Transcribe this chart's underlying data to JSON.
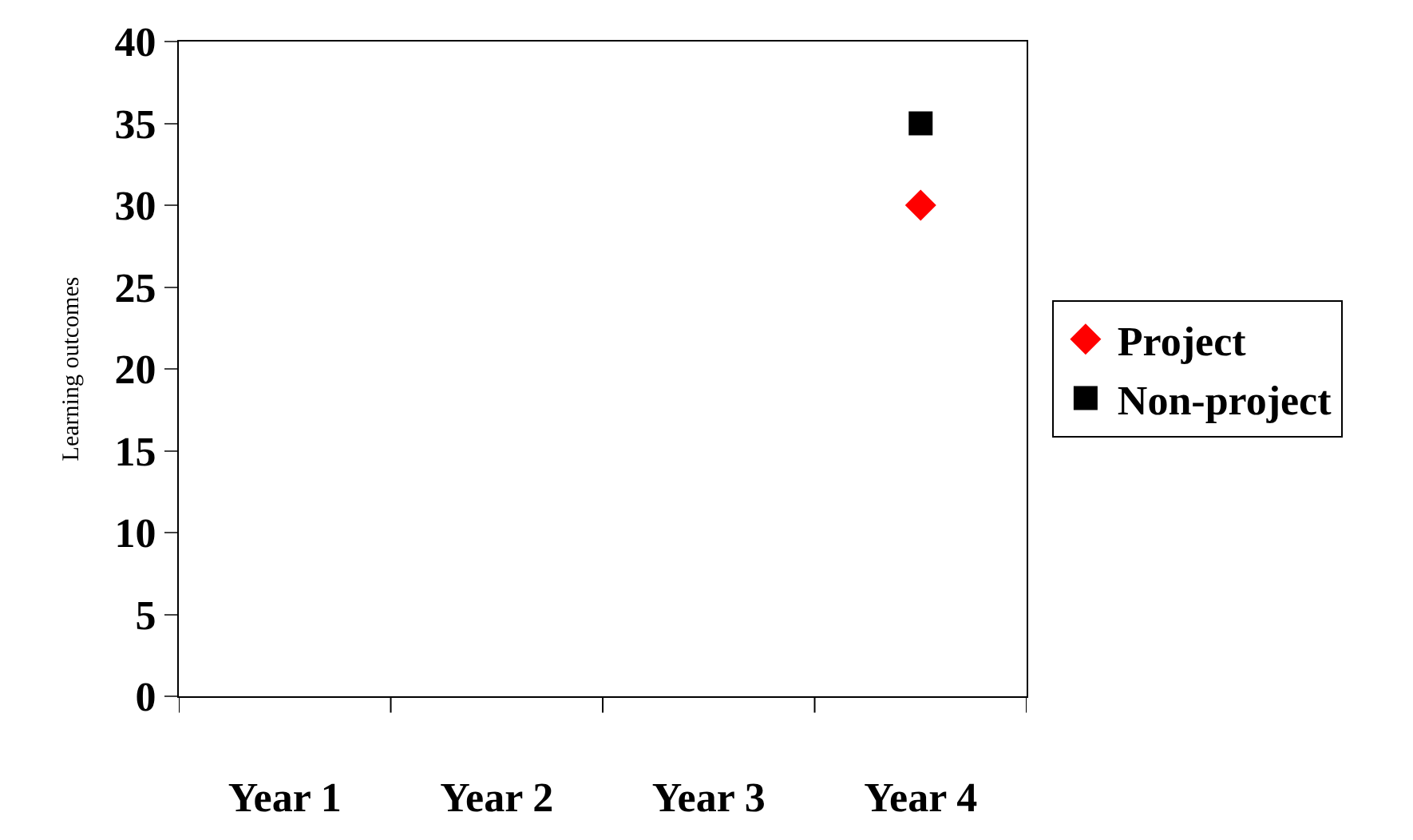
{
  "chart_data": {
    "type": "scatter",
    "ylabel": "Learning outcomes",
    "categories": [
      "Year 1",
      "Year 2",
      "Year 3",
      "Year 4"
    ],
    "series": [
      {
        "name": "Project",
        "color": "#ff0000",
        "marker": "diamond",
        "values": [
          null,
          null,
          null,
          30
        ]
      },
      {
        "name": "Non-project",
        "color": "#000000",
        "marker": "square",
        "values": [
          null,
          null,
          null,
          35
        ]
      }
    ],
    "ylim": [
      0,
      40
    ],
    "yticks": [
      0,
      5,
      10,
      15,
      20,
      25,
      30,
      35,
      40
    ],
    "legend": "right"
  }
}
